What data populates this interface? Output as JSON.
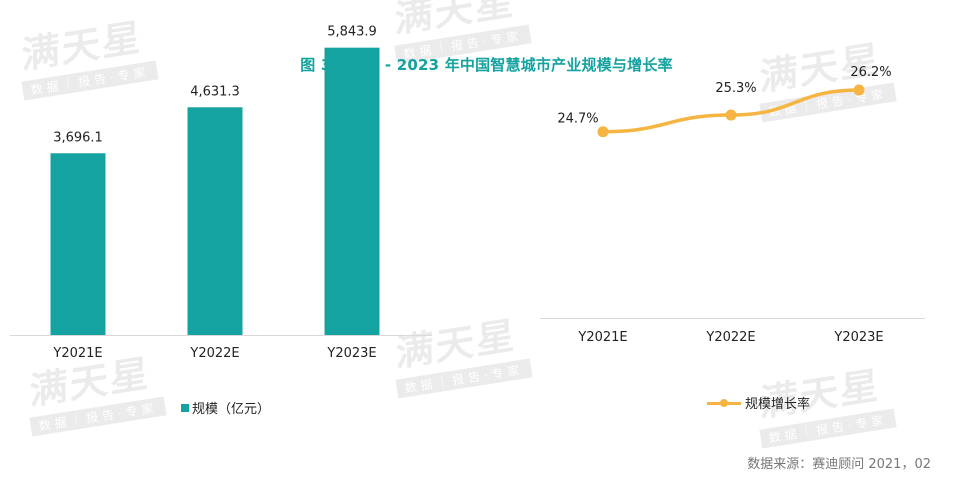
{
  "title": "图 3  2021 - 2023 年中国智慧城市产业规模与增长率",
  "watermark": {
    "name": "满天星",
    "tagline": "数据｜报告·专家"
  },
  "source": "数据来源：赛迪顾问  2021，02",
  "colors": {
    "bar": "#14a3a0",
    "line": "#f6b440",
    "title": "#14a3a0",
    "axis": "#d9d9d9"
  },
  "chart_data": [
    {
      "type": "bar",
      "categories": [
        "Y2021E",
        "Y2022E",
        "Y2023E"
      ],
      "series": [
        {
          "name": "规模（亿元）",
          "values": [
            3696.1,
            4631.3,
            5843.9
          ]
        }
      ],
      "data_labels": [
        "3,696.1",
        "4,631.3",
        "5,843.9"
      ],
      "ylim": [
        0,
        6000
      ],
      "legend_label": "规模（亿元）",
      "legend": "bottom",
      "grid": false
    },
    {
      "type": "line",
      "categories": [
        "Y2021E",
        "Y2022E",
        "Y2023E"
      ],
      "series": [
        {
          "name": "规模增长率",
          "values": [
            24.7,
            25.3,
            26.2
          ]
        }
      ],
      "data_labels": [
        "24.7%",
        "25.3%",
        "26.2%"
      ],
      "ylim": [
        18,
        28
      ],
      "legend_label": "规模增长率",
      "legend": "bottom",
      "grid": false
    }
  ]
}
